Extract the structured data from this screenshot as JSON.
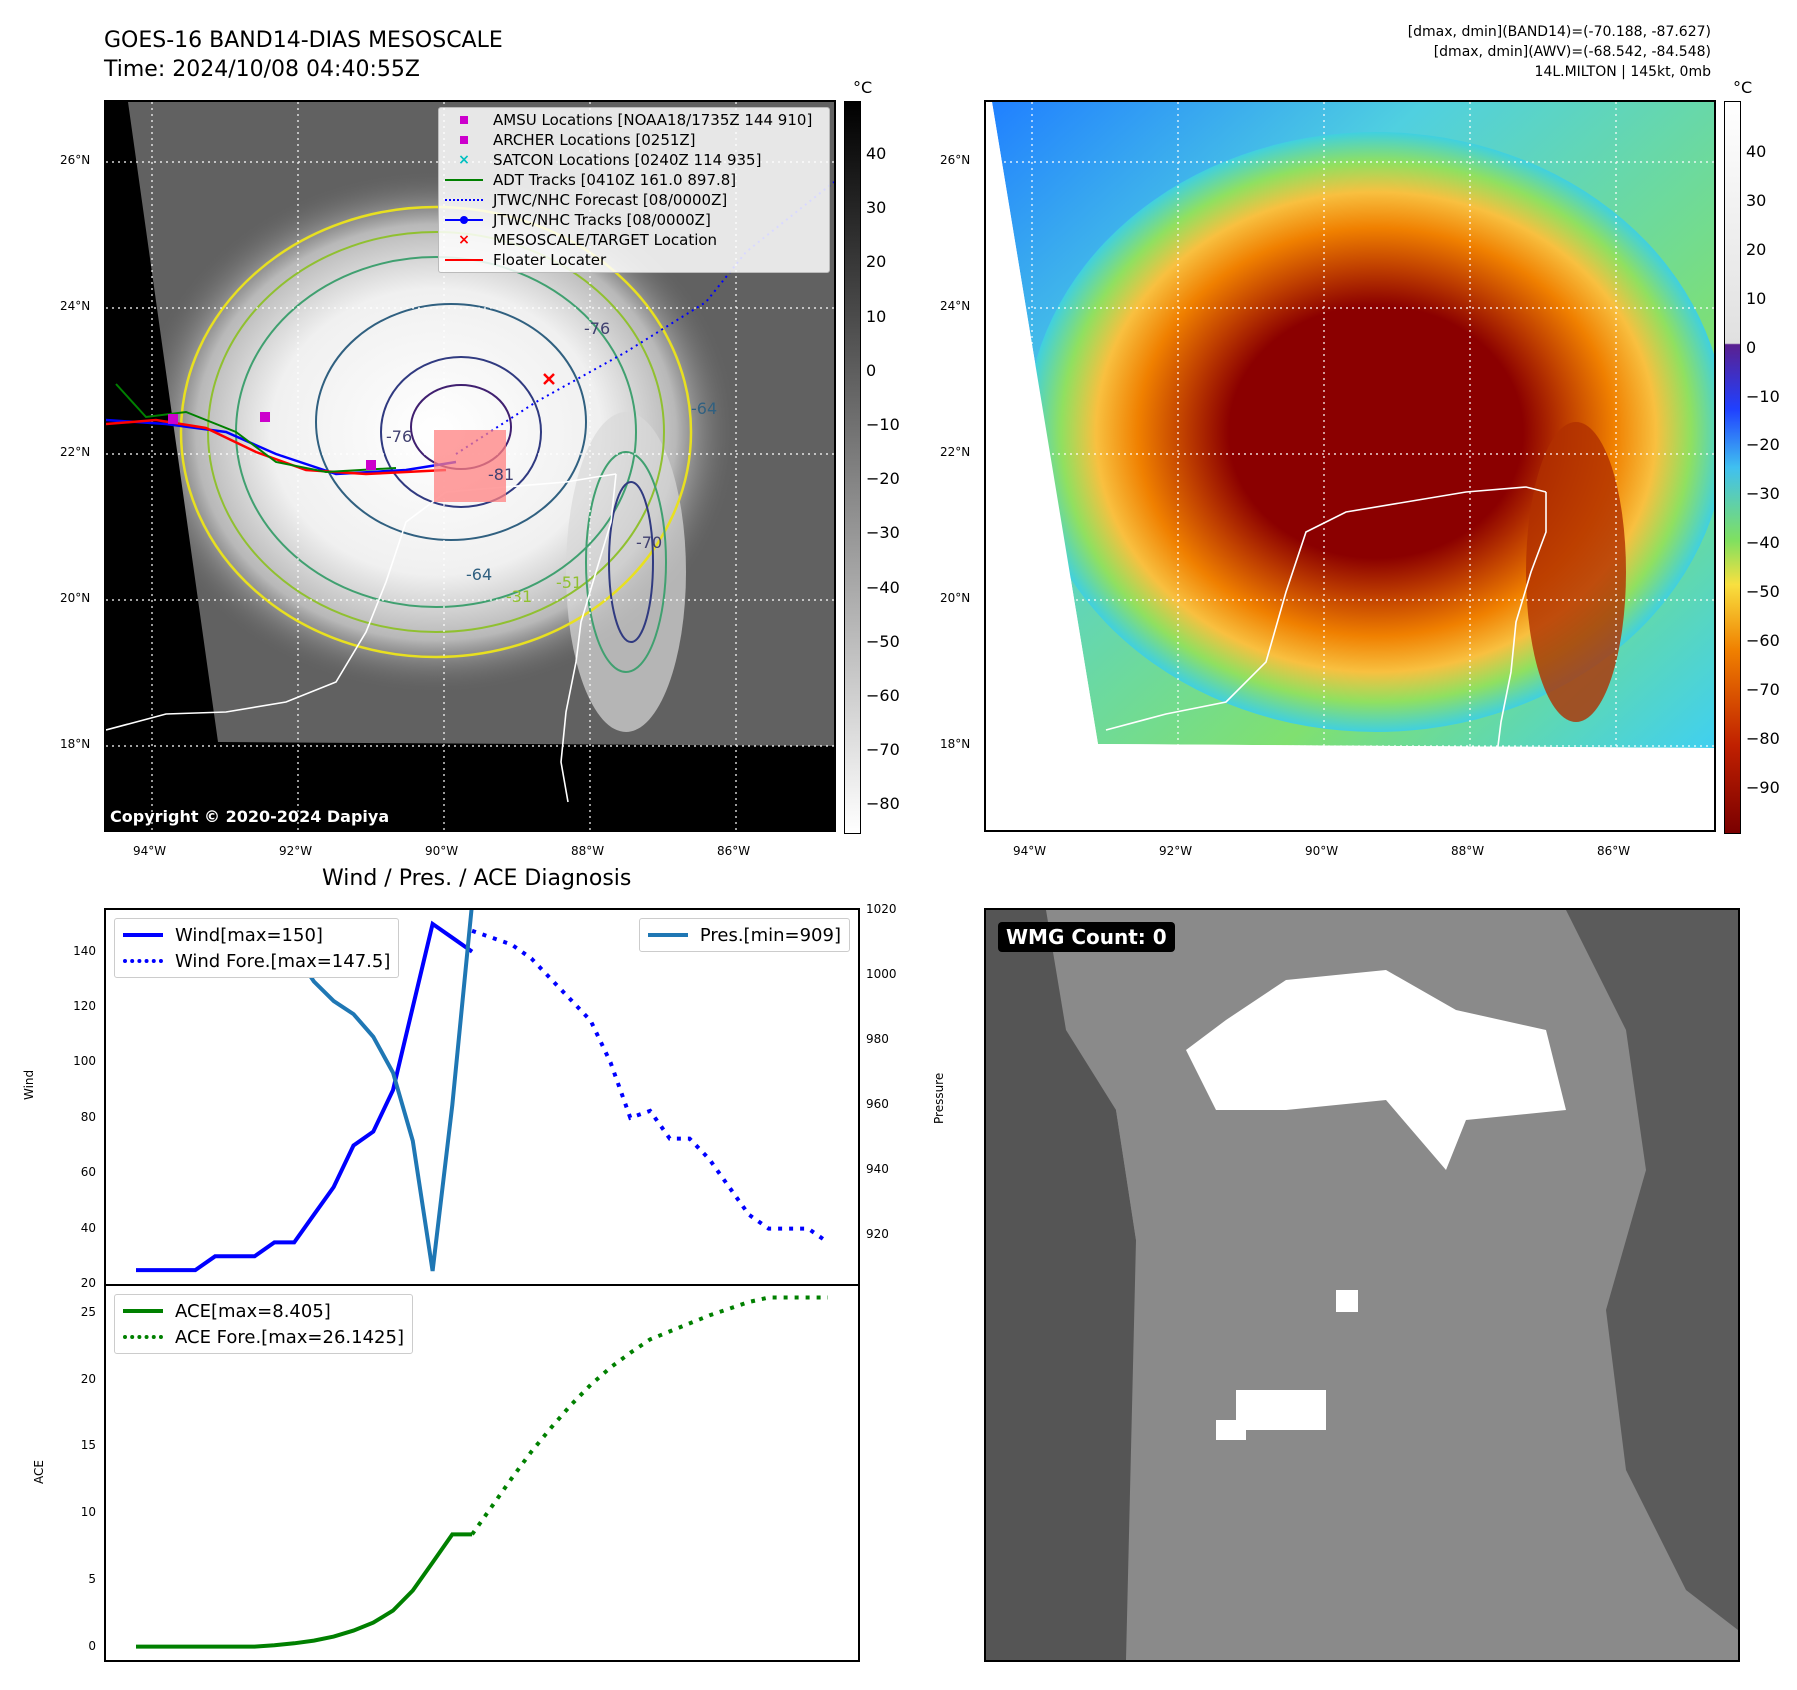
{
  "header": {
    "title_line1": "GOES-16 BAND14-DIAS MESOSCALE",
    "title_line2": "Time: 2024/10/08 04:40:55Z",
    "right_line1": "[dmax, dmin](BAND14)=(-70.188, -87.627)",
    "right_line2": "[dmax, dmin](AWV)=(-68.542, -84.548)",
    "right_line3": "14L.MILTON | 145kt, 0mb"
  },
  "map_ticks": {
    "lat": [
      "26°N",
      "24°N",
      "22°N",
      "20°N",
      "18°N"
    ],
    "lon": [
      "94°W",
      "92°W",
      "90°W",
      "88°W",
      "86°W"
    ]
  },
  "colorbar_left": {
    "unit": "°C",
    "ticks": [
      "40",
      "30",
      "20",
      "10",
      "0",
      "−10",
      "−20",
      "−30",
      "−40",
      "−50",
      "−60",
      "−70",
      "−80"
    ]
  },
  "colorbar_right": {
    "unit": "°C",
    "ticks": [
      "40",
      "30",
      "20",
      "10",
      "0",
      "−10",
      "−20",
      "−30",
      "−40",
      "−50",
      "−60",
      "−70",
      "−80",
      "−90"
    ]
  },
  "ir_legend": {
    "items": [
      {
        "label": "AMSU Locations [NOAA18/1735Z 144 910]",
        "color": "#cc00cc",
        "marker": "square"
      },
      {
        "label": "ARCHER Locations [0251Z]",
        "color": "#cc00cc",
        "marker": "square"
      },
      {
        "label": "SATCON Locations [0240Z 114 935]",
        "color": "#00c0c0",
        "marker": "x"
      },
      {
        "label": "ADT Tracks [0410Z 161.0 897.8]",
        "color": "#008000",
        "marker": "line"
      },
      {
        "label": "JTWC/NHC Forecast [08/0000Z]",
        "color": "#0000ff",
        "marker": "dotted"
      },
      {
        "label": "JTWC/NHC Tracks [08/0000Z]",
        "color": "#0000ff",
        "marker": "line-dot"
      },
      {
        "label": "MESOSCALE/TARGET Location",
        "color": "#ff0000",
        "marker": "x"
      },
      {
        "label": "Floater Locater",
        "color": "#ff0000",
        "marker": "line"
      }
    ]
  },
  "contour_labels": [
    "-76",
    "-76",
    "-81",
    "-64",
    "-64",
    "-51",
    "-31",
    "-70"
  ],
  "copyright": "Copyright © 2020-2024 Dapiya",
  "wmg": {
    "label": "WMG Count: 0"
  },
  "chart_data": [
    {
      "type": "line",
      "title": "Wind / Pres. / ACE Diagnosis",
      "ylabel": "Wind",
      "y2label": "Pressure",
      "ylim": [
        20,
        155
      ],
      "y2lim": [
        905,
        1020
      ],
      "yticks": [
        "20",
        "40",
        "60",
        "80",
        "100",
        "120",
        "140"
      ],
      "y2ticks": [
        "920",
        "940",
        "960",
        "980",
        "1000",
        "1020"
      ],
      "legend": [
        "Wind[max=150]",
        "Wind Fore.[max=147.5]"
      ],
      "legend2": [
        "Pres.[min=909]"
      ],
      "series": [
        {
          "name": "Wind[max=150]",
          "color": "#0000ff",
          "style": "solid",
          "x": [
            0,
            1,
            2,
            3,
            4,
            5,
            6,
            7,
            8,
            9,
            10,
            11,
            12,
            13,
            14,
            15,
            16,
            17
          ],
          "y": [
            25,
            25,
            25,
            25,
            30,
            30,
            30,
            35,
            35,
            45,
            55,
            70,
            75,
            90,
            120,
            150,
            145,
            140
          ]
        },
        {
          "name": "Wind Fore.[max=147.5]",
          "color": "#0000ff",
          "style": "dotted",
          "x": [
            17,
            18,
            19,
            20,
            21,
            22,
            23,
            24,
            25,
            26,
            27,
            28,
            29,
            30,
            31,
            32,
            33,
            34,
            35
          ],
          "y": [
            147.5,
            145,
            142.5,
            137.5,
            130,
            122.5,
            115,
            100,
            80,
            82.5,
            72.5,
            72.5,
            65,
            55,
            45,
            40,
            40,
            40,
            35
          ]
        },
        {
          "name": "Pres.[min=909]",
          "color": "#1f77b4",
          "style": "solid",
          "x": [
            0,
            1,
            2,
            3,
            4,
            5,
            6,
            7,
            8,
            9,
            10,
            11,
            12,
            13,
            14,
            15,
            16,
            17
          ],
          "y": [
            1014,
            1014,
            1014,
            1014,
            1009,
            1009,
            1008,
            1007,
            1007,
            998,
            992,
            988,
            981,
            970,
            949,
            909,
            960,
            1022
          ]
        }
      ]
    },
    {
      "type": "line",
      "ylabel": "ACE",
      "ylim": [
        -1,
        27
      ],
      "yticks": [
        "0",
        "5",
        "10",
        "15",
        "20",
        "25"
      ],
      "legend": [
        "ACE[max=8.405]",
        "ACE Fore.[max=26.1425]"
      ],
      "series": [
        {
          "name": "ACE[max=8.405]",
          "color": "#008000",
          "style": "solid",
          "x": [
            0,
            1,
            2,
            3,
            4,
            5,
            6,
            7,
            8,
            9,
            10,
            11,
            12,
            13,
            14,
            15,
            16,
            17
          ],
          "y": [
            0,
            0,
            0,
            0,
            0,
            0,
            0,
            0.1,
            0.25,
            0.45,
            0.75,
            1.2,
            1.8,
            2.7,
            4.2,
            6.3,
            8.405,
            8.405
          ]
        },
        {
          "name": "ACE Fore.[max=26.1425]",
          "color": "#008000",
          "style": "dotted",
          "x": [
            17,
            18,
            19,
            20,
            21,
            22,
            23,
            24,
            25,
            26,
            27,
            28,
            29,
            30,
            31,
            32,
            33,
            34,
            35
          ],
          "y": [
            8.405,
            10.5,
            12.6,
            14.6,
            16.4,
            18.1,
            19.6,
            20.9,
            22.0,
            23.0,
            23.6,
            24.2,
            24.8,
            25.3,
            25.8,
            26.1425,
            26.1425,
            26.1425,
            26.1425
          ]
        }
      ]
    }
  ]
}
